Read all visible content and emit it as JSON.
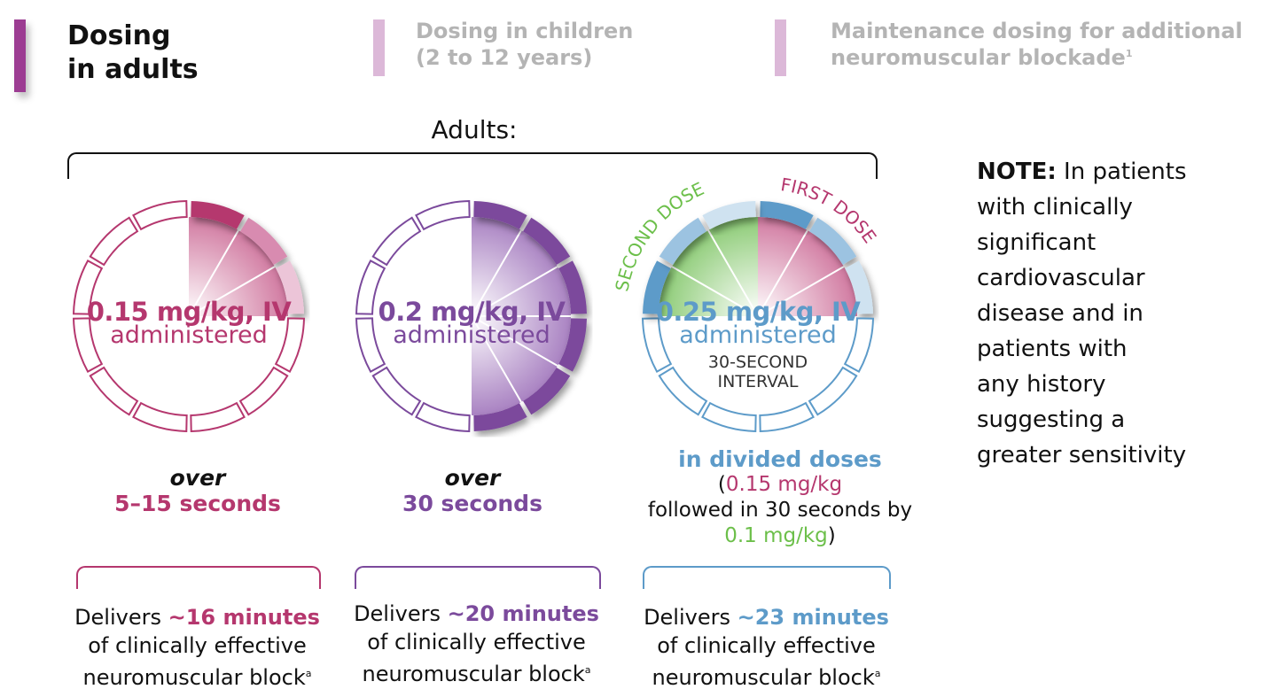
{
  "tabs": [
    {
      "line1": "Dosing",
      "line2": "in adults",
      "sup": ""
    },
    {
      "line1": "Dosing in children",
      "line2": "(2 to 12 years)",
      "sup": ""
    },
    {
      "line1": "Maintenance dosing for additional",
      "line2": "neuromuscular blockade",
      "sup": "1"
    }
  ],
  "section_label": "Adults:",
  "dials": [
    {
      "dose": "0.15 mg/kg, IV",
      "admin": "administered"
    },
    {
      "dose": "0.2 mg/kg, IV",
      "admin": "administered"
    },
    {
      "dose": "0.25 mg/kg, IV",
      "admin": "administered",
      "interval1": "30-SECOND",
      "interval2": "INTERVAL",
      "first_dose": "FIRST DOSE",
      "second_dose": "SECOND DOSE"
    }
  ],
  "regimens": [
    {
      "over": "over",
      "duration": "5–15 seconds"
    },
    {
      "over": "over",
      "duration": "30 seconds"
    },
    {
      "title": "in divided doses",
      "open": "(",
      "dose1": "0.15 mg/kg",
      "mid": "followed in 30 seconds by",
      "dose2": "0.1 mg/kg",
      "close": ")"
    }
  ],
  "outcomes": [
    {
      "pre": "Delivers ",
      "minutes": "~16 minutes",
      "line2": "of clinically effective",
      "line3": "neuromuscular block",
      "sup": "a"
    },
    {
      "pre": "Delivers ",
      "minutes": "~20 minutes",
      "line2": "of clinically effective",
      "line3": "neuromuscular block",
      "sup": "a"
    },
    {
      "pre": "Delivers ",
      "minutes": "~23 minutes",
      "line2": "of clinically effective",
      "line3": "neuromuscular block",
      "sup": "a"
    }
  ],
  "note": {
    "label": "NOTE:",
    "lines": [
      "In patients",
      "with clinically",
      "significant",
      "cardiovascular",
      "disease and in",
      "patients with",
      "any history",
      "suggesting a",
      "greater sensitivity"
    ]
  },
  "colors": {
    "magenta": "#b5376e",
    "purple": "#7b4a9c",
    "blue": "#5d9bc9",
    "green": "#6cbf4a",
    "tab_active": "#9c3c92",
    "tab_inactive": "#dcb8d8"
  }
}
